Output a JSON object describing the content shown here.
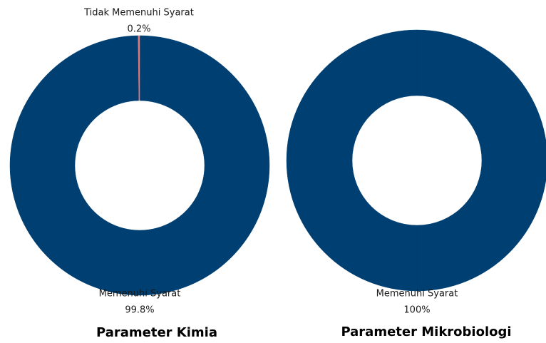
{
  "chart_data": [
    {
      "type": "pie",
      "title": "Parameter Kimia",
      "categories": [
        "Memenuhi Syarat",
        "Tidak Memenuhi Syarat"
      ],
      "values": [
        99.8,
        0.2
      ],
      "value_labels": [
        "99.8%",
        "0.2%"
      ],
      "colors": [
        "#003f72",
        "#e07a7a"
      ],
      "donut": true
    },
    {
      "type": "pie",
      "title": "Parameter Mikrobiologi",
      "categories": [
        "Memenuhi Syarat"
      ],
      "values": [
        100
      ],
      "value_labels": [
        "100%"
      ],
      "colors": [
        "#003f72"
      ],
      "donut": true
    }
  ]
}
